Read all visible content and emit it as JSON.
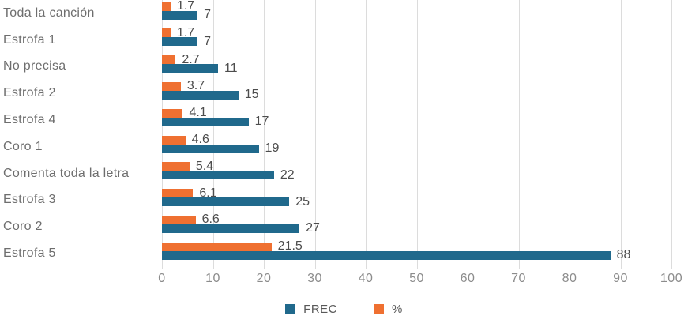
{
  "chart_data": {
    "type": "bar",
    "orientation": "horizontal",
    "title": "",
    "xlabel": "",
    "ylabel": "",
    "categories": [
      "Toda la canción",
      "Estrofa 1",
      "No precisa",
      "Estrofa 2",
      "Estrofa 4",
      "Coro 1",
      "Comenta toda la letra",
      "Estrofa 3",
      "Coro 2",
      "Estrofa 5"
    ],
    "series": [
      {
        "name": "FREC",
        "color": "#20698C",
        "values": [
          7,
          7,
          11,
          15,
          17,
          19,
          22,
          25,
          27,
          88
        ]
      },
      {
        "name": "%",
        "color": "#EF7031",
        "values": [
          1.7,
          1.7,
          2.7,
          3.7,
          4.1,
          4.6,
          5.4,
          6.1,
          6.6,
          21.5
        ]
      }
    ],
    "xlim": [
      0,
      100
    ],
    "x_ticks": [
      0,
      10,
      20,
      30,
      40,
      50,
      60,
      70,
      80,
      90,
      100
    ],
    "grid": "vertical gridlines at each x tick",
    "legend_position": "bottom center",
    "colors": {
      "gridline": "#DCDCDC",
      "tick_text": "#8C8C8C",
      "category_text": "#6E6E6E",
      "value_text": "#4D4D4D",
      "legend_text": "#595959",
      "background": "#FFFFFF"
    }
  }
}
